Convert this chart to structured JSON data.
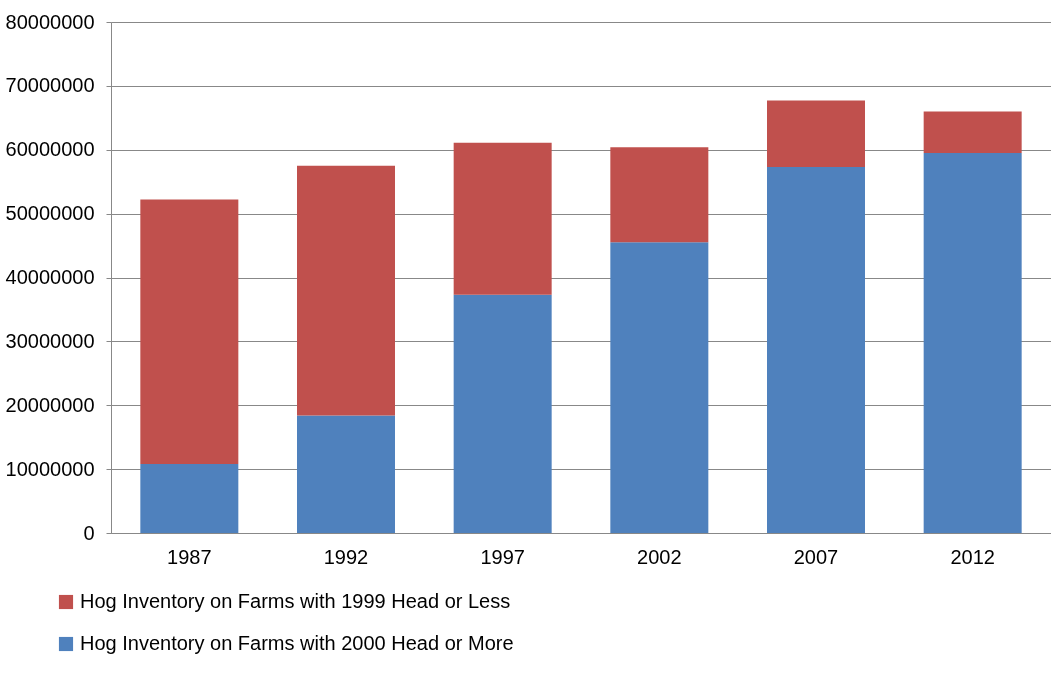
{
  "chart_data": {
    "type": "bar",
    "stacked": true,
    "categories": [
      "1987",
      "1992",
      "1997",
      "2002",
      "2007",
      "2012"
    ],
    "series": [
      {
        "name": "Hog Inventory on Farms with 2000 Head or More",
        "color": "#4f81bd",
        "values": [
          10800000,
          18400000,
          37300000,
          45500000,
          57300000,
          59500000
        ]
      },
      {
        "name": " Hog Inventory on Farms with 1999 Head or Less",
        "color": "#c0504d",
        "values": [
          41400000,
          39100000,
          23800000,
          14900000,
          10400000,
          6500000
        ]
      }
    ],
    "ylim": [
      0,
      80000000
    ],
    "yticks": [
      0,
      10000000,
      20000000,
      30000000,
      40000000,
      50000000,
      60000000,
      70000000,
      80000000
    ],
    "grid": "y",
    "legend": "bottom"
  }
}
